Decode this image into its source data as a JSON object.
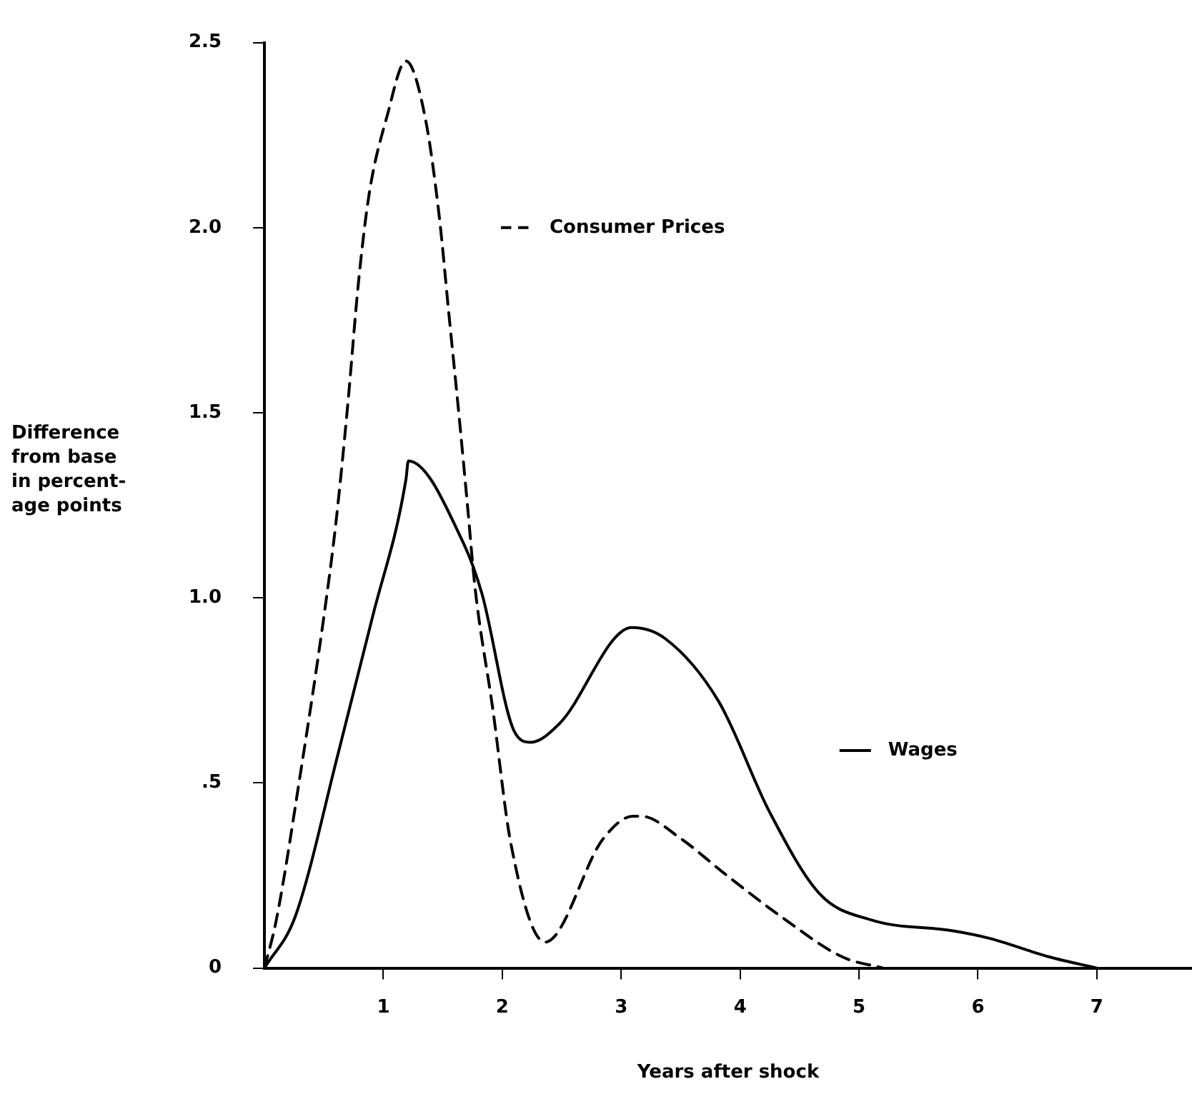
{
  "chart_data": {
    "type": "line",
    "xlabel": "Years after shock",
    "ylabel": "Difference\nfrom base\nin percent-\nage points",
    "xlim": [
      0,
      7.8
    ],
    "xticks": [
      1,
      2,
      3,
      4,
      5,
      6,
      7
    ],
    "ylim": [
      0,
      2.5
    ],
    "yticks": [
      0,
      {
        "value": 0.5,
        "label": ".5"
      },
      {
        "value": 1,
        "label": "1.0"
      },
      {
        "value": 1.5,
        "label": "1.5"
      },
      {
        "value": 2,
        "label": "2.0"
      },
      {
        "value": 2.5,
        "label": "2.5"
      }
    ],
    "grid": false,
    "legend": "right",
    "marker": "none",
    "series": [
      {
        "name": "Consumer Prices",
        "color": "#000000",
        "line_style": "dashed",
        "x": [
          0,
          0.1,
          0.3,
          0.5,
          0.6,
          0.7,
          0.79,
          0.88,
          1.03,
          1.19,
          1.35,
          1.47,
          1.55,
          1.64,
          1.71,
          1.77,
          1.92,
          2.07,
          2.36,
          2.85,
          3.1,
          3.17,
          3.5,
          3.85,
          4.34,
          4.86,
          5.2
        ],
        "values": [
          0,
          0.13,
          0.52,
          0.95,
          1.2,
          1.52,
          1.85,
          2.09,
          2.3,
          2.45,
          2.3,
          2.03,
          1.77,
          1.48,
          1.24,
          1.03,
          0.7,
          0.34,
          0.07,
          0.35,
          0.41,
          0.41,
          0.35,
          0.26,
          0.14,
          0.03,
          0
        ]
      },
      {
        "name": "Wages",
        "color": "#000000",
        "line_style": "solid",
        "x": [
          0,
          0.26,
          0.62,
          0.91,
          1.19,
          1.21,
          1.67,
          1.83,
          2.1,
          2.24,
          2.48,
          3.09,
          3.37,
          3.82,
          4.25,
          4.67,
          5.1,
          5.8,
          6.1,
          6.6,
          7.0
        ],
        "values": [
          0,
          0.14,
          0.58,
          0.95,
          1.32,
          1.37,
          1.15,
          1.01,
          0.64,
          0.61,
          0.66,
          0.92,
          0.89,
          0.72,
          0.42,
          0.2,
          0.13,
          0.1,
          0.08,
          0.03,
          0
        ]
      }
    ]
  }
}
